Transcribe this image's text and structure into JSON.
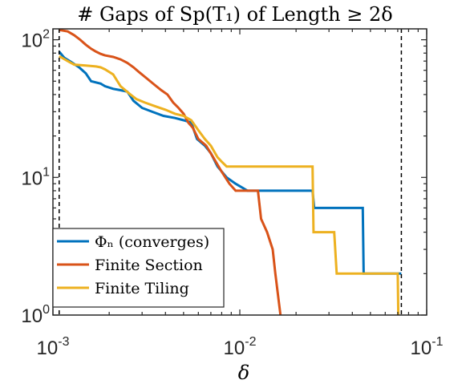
{
  "chart_data": {
    "type": "line",
    "title": "# Gaps of Sp(T₁) of Length ≥ 2δ",
    "xlabel": "δ",
    "ylabel": "",
    "xscale": "log",
    "yscale": "log",
    "xlim": [
      0.001,
      0.1
    ],
    "ylim": [
      1,
      120
    ],
    "x_ticks": [
      0.001,
      0.01,
      0.1
    ],
    "y_ticks": [
      1,
      10,
      100
    ],
    "x_tick_labels": [
      {
        "base": "10",
        "exp": "-3"
      },
      {
        "base": "10",
        "exp": "-2"
      },
      {
        "base": "10",
        "exp": "-1"
      }
    ],
    "y_tick_labels": [
      {
        "base": "10",
        "exp": "0"
      },
      {
        "base": "10",
        "exp": "1"
      },
      {
        "base": "10",
        "exp": "2"
      }
    ],
    "grid": false,
    "legend_position": "bottom-left",
    "vertical_reference_lines": [
      0.00108,
      0.0732
    ],
    "series": [
      {
        "name": "Φₙ (converges)",
        "color": "#0072BD",
        "points": [
          [
            0.00108,
            82
          ],
          [
            0.00115,
            74
          ],
          [
            0.00125,
            69
          ],
          [
            0.00138,
            63
          ],
          [
            0.0015,
            57
          ],
          [
            0.0016,
            50
          ],
          [
            0.0018,
            48
          ],
          [
            0.0019,
            46
          ],
          [
            0.0021,
            44
          ],
          [
            0.0023,
            43
          ],
          [
            0.0025,
            42
          ],
          [
            0.0027,
            36
          ],
          [
            0.003,
            32
          ],
          [
            0.0034,
            30
          ],
          [
            0.0039,
            28
          ],
          [
            0.0045,
            27
          ],
          [
            0.005,
            26
          ],
          [
            0.0055,
            25
          ],
          [
            0.0059,
            19
          ],
          [
            0.0065,
            17
          ],
          [
            0.007,
            15
          ],
          [
            0.0076,
            12
          ],
          [
            0.0085,
            10
          ],
          [
            0.0095,
            9
          ],
          [
            0.011,
            8
          ],
          [
            0.0245,
            8
          ],
          [
            0.025,
            6
          ],
          [
            0.0455,
            6
          ],
          [
            0.046,
            2
          ],
          [
            0.0732,
            2
          ]
        ]
      },
      {
        "name": "Finite Section",
        "color": "#D95319",
        "points": [
          [
            0.00108,
            118
          ],
          [
            0.0012,
            115
          ],
          [
            0.0013,
            108
          ],
          [
            0.0014,
            100
          ],
          [
            0.0015,
            92
          ],
          [
            0.0016,
            86
          ],
          [
            0.0017,
            82
          ],
          [
            0.0018,
            79
          ],
          [
            0.0019,
            77
          ],
          [
            0.0021,
            75
          ],
          [
            0.0023,
            72
          ],
          [
            0.0025,
            68
          ],
          [
            0.0027,
            63
          ],
          [
            0.0029,
            58
          ],
          [
            0.0032,
            52
          ],
          [
            0.0035,
            47
          ],
          [
            0.0038,
            43
          ],
          [
            0.0041,
            40
          ],
          [
            0.0044,
            35
          ],
          [
            0.0047,
            32
          ],
          [
            0.005,
            29
          ],
          [
            0.0053,
            25
          ],
          [
            0.0056,
            23
          ],
          [
            0.006,
            19
          ],
          [
            0.0066,
            17
          ],
          [
            0.0072,
            14
          ],
          [
            0.008,
            11
          ],
          [
            0.0088,
            9
          ],
          [
            0.0095,
            8
          ],
          [
            0.0125,
            8
          ],
          [
            0.013,
            5
          ],
          [
            0.014,
            4
          ],
          [
            0.015,
            3
          ],
          [
            0.0155,
            2
          ],
          [
            0.0165,
            1
          ]
        ]
      },
      {
        "name": "Finite Tiling",
        "color": "#EDB120",
        "points": [
          [
            0.00108,
            76
          ],
          [
            0.0012,
            70
          ],
          [
            0.0013,
            66
          ],
          [
            0.0015,
            65
          ],
          [
            0.0017,
            64
          ],
          [
            0.0018,
            63
          ],
          [
            0.0019,
            61
          ],
          [
            0.0021,
            56
          ],
          [
            0.0023,
            46
          ],
          [
            0.0026,
            40
          ],
          [
            0.0028,
            37
          ],
          [
            0.0031,
            35
          ],
          [
            0.0035,
            33
          ],
          [
            0.004,
            31
          ],
          [
            0.0045,
            29
          ],
          [
            0.005,
            28
          ],
          [
            0.0055,
            26
          ],
          [
            0.006,
            22
          ],
          [
            0.0065,
            19
          ],
          [
            0.007,
            17
          ],
          [
            0.0076,
            14
          ],
          [
            0.008,
            13
          ],
          [
            0.0085,
            12
          ],
          [
            0.0245,
            12
          ],
          [
            0.0248,
            4
          ],
          [
            0.032,
            4
          ],
          [
            0.033,
            2
          ],
          [
            0.07,
            2
          ],
          [
            0.0705,
            1
          ]
        ]
      }
    ]
  }
}
